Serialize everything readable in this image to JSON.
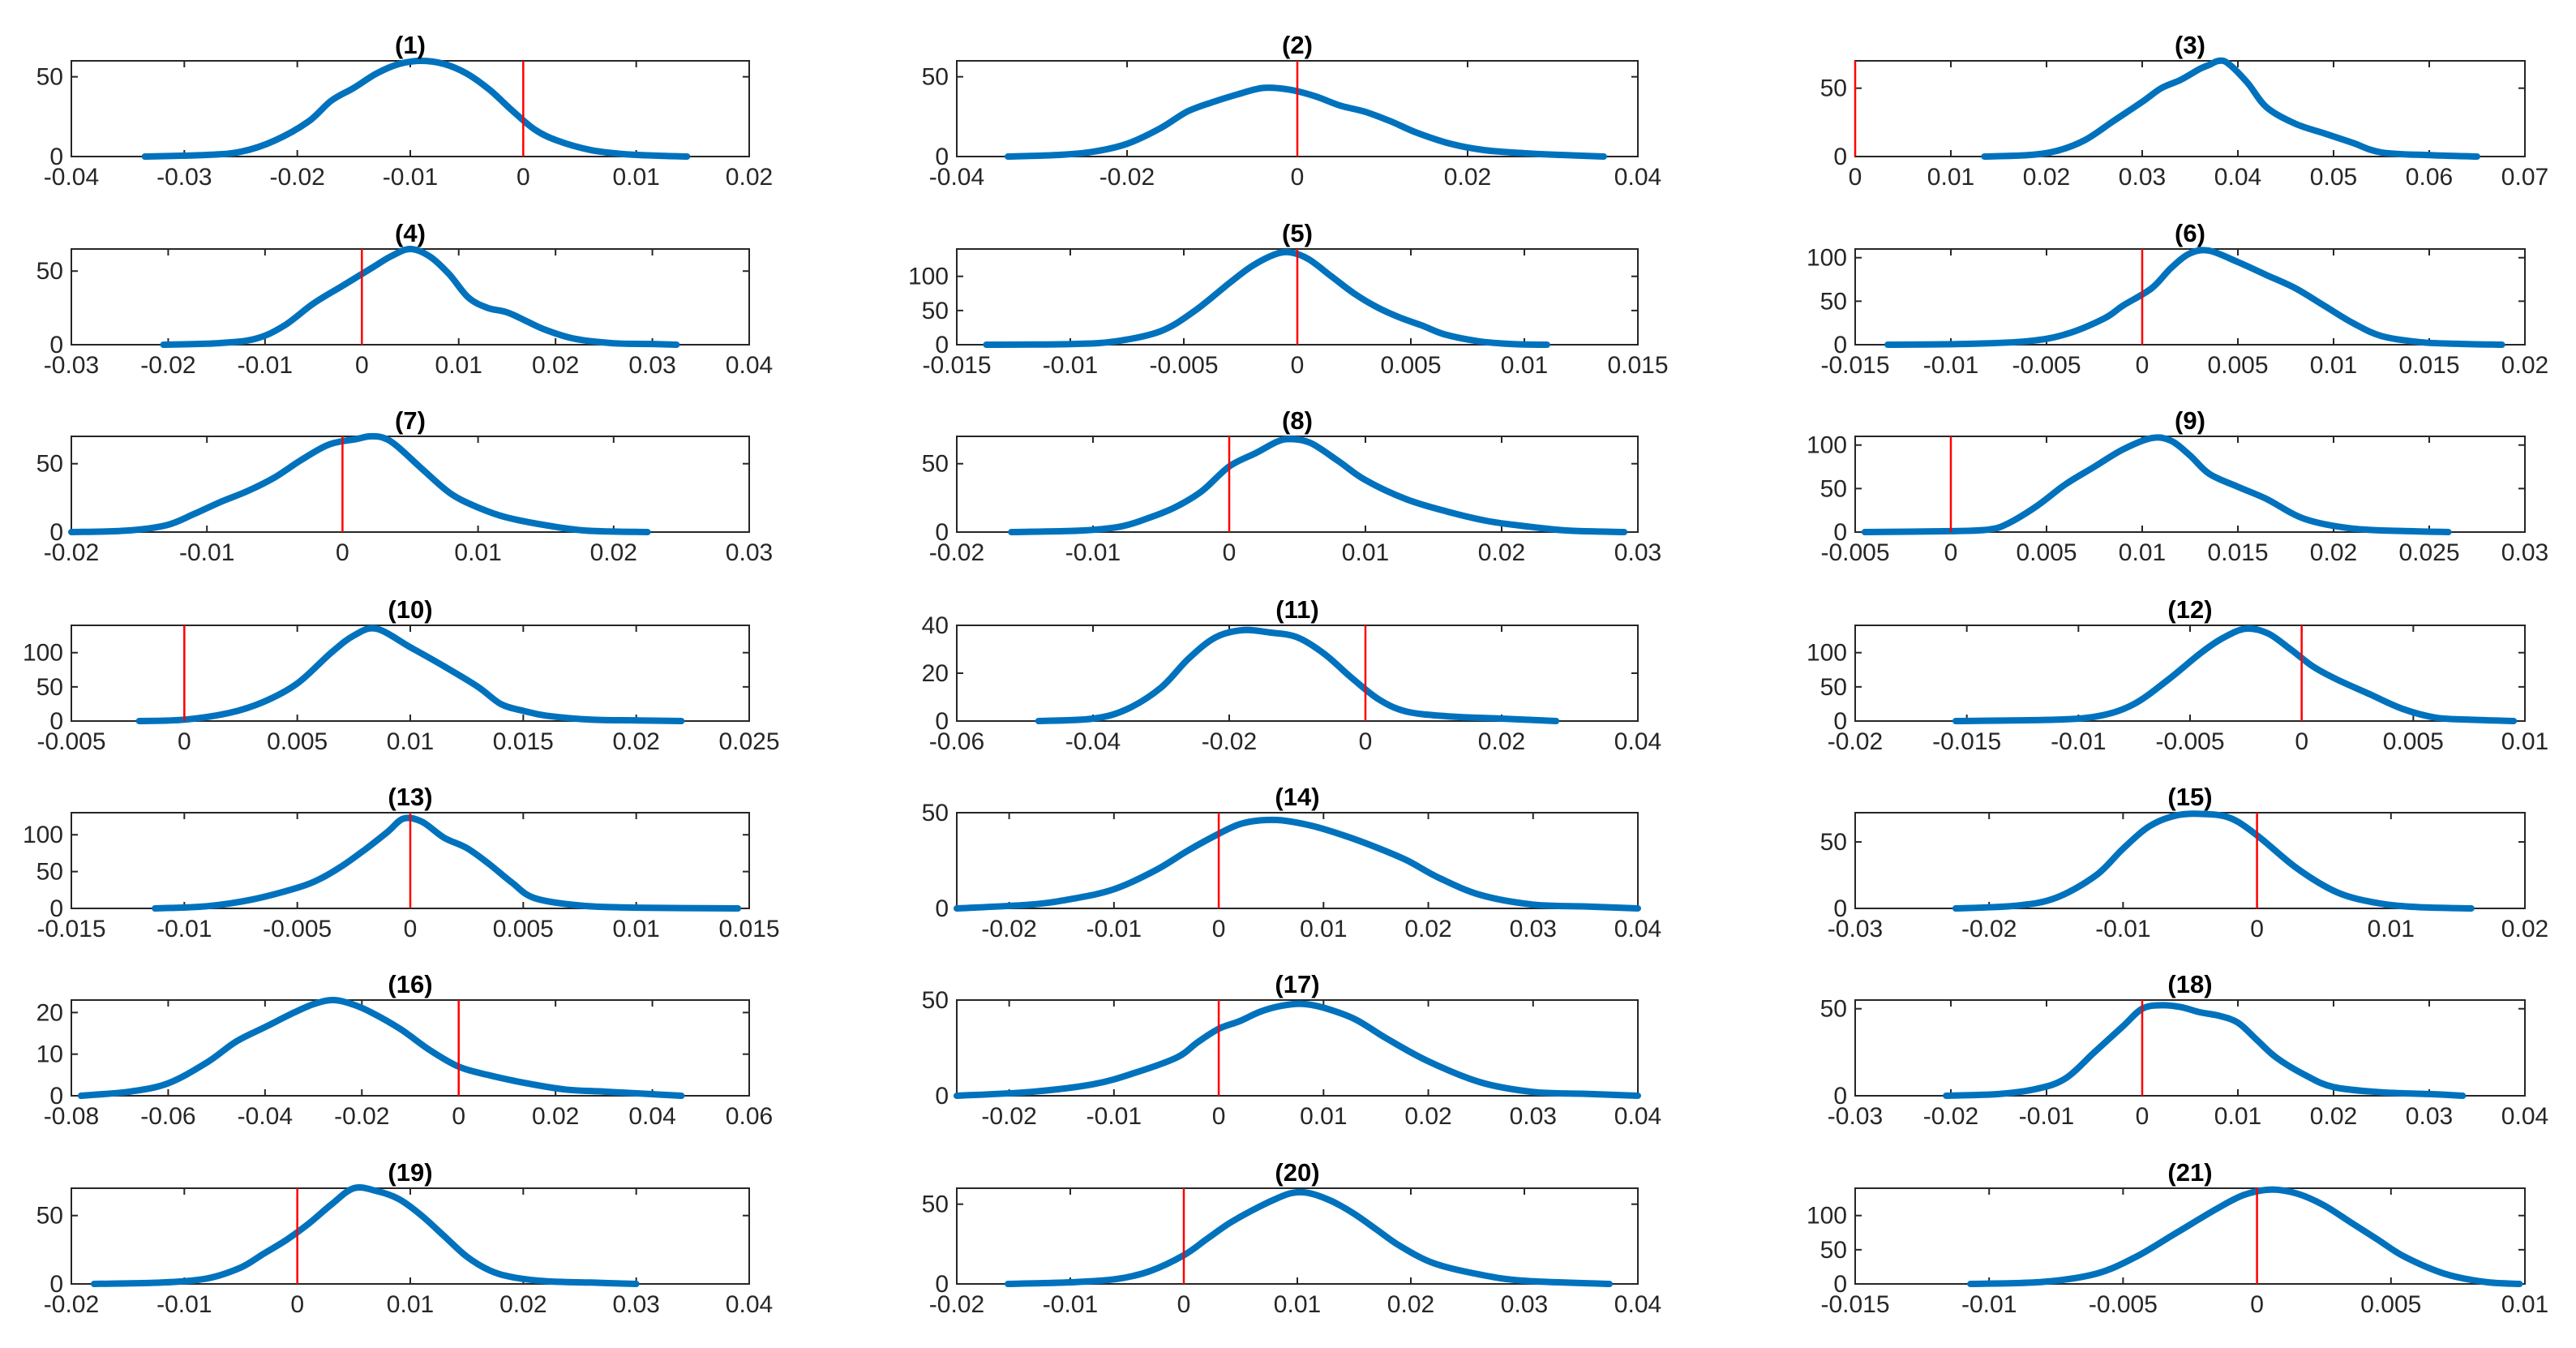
{
  "chart_data": [
    {
      "title": "(1)",
      "type": "line",
      "xticks": [
        -0.04,
        -0.03,
        -0.02,
        -0.01,
        0,
        0.01,
        0.02
      ],
      "xlim": [
        -0.04,
        0.02
      ],
      "yticks": [
        0,
        50
      ],
      "ylim": [
        0,
        60
      ],
      "ref_x": 0,
      "x": [
        -0.0335,
        -0.028,
        -0.025,
        -0.022,
        -0.019,
        -0.017,
        -0.015,
        -0.013,
        -0.011,
        -0.009,
        -0.007,
        -0.005,
        -0.003,
        -0.001,
        0.001,
        0.003,
        0.006,
        0.009,
        0.012,
        0.0145
      ],
      "y": [
        0,
        1,
        3,
        10,
        22,
        35,
        43,
        52,
        58,
        60,
        58,
        52,
        42,
        29,
        17,
        10,
        4,
        1.5,
        0.5,
        0
      ]
    },
    {
      "title": "(2)",
      "type": "line",
      "xticks": [
        -0.04,
        -0.02,
        0,
        0.02,
        0.04
      ],
      "xlim": [
        -0.04,
        0.04
      ],
      "yticks": [
        0,
        50
      ],
      "ylim": [
        0,
        60
      ],
      "ref_x": 0,
      "x": [
        -0.034,
        -0.028,
        -0.024,
        -0.02,
        -0.016,
        -0.013,
        -0.01,
        -0.007,
        -0.004,
        -0.001,
        0.002,
        0.005,
        0.008,
        0.011,
        0.014,
        0.018,
        0.022,
        0.027,
        0.031,
        0.036
      ],
      "y": [
        0,
        1,
        3,
        8,
        18,
        28,
        34,
        39,
        43,
        42,
        38,
        32,
        28,
        22,
        15,
        8,
        4,
        2,
        1,
        0
      ]
    },
    {
      "title": "(3)",
      "type": "line",
      "xticks": [
        0,
        0.01,
        0.02,
        0.03,
        0.04,
        0.05,
        0.06,
        0.07
      ],
      "xlim": [
        0,
        0.07
      ],
      "yticks": [
        0,
        50
      ],
      "ylim": [
        0,
        70
      ],
      "ref_x": 0,
      "x": [
        0.0135,
        0.018,
        0.021,
        0.024,
        0.027,
        0.03,
        0.032,
        0.034,
        0.036,
        0.037,
        0.038,
        0.039,
        0.041,
        0.043,
        0.046,
        0.049,
        0.052,
        0.055,
        0.06,
        0.065
      ],
      "y": [
        0,
        1,
        4,
        12,
        26,
        40,
        50,
        56,
        64,
        67,
        70,
        68,
        54,
        36,
        24,
        17,
        10,
        3,
        1,
        0
      ]
    },
    {
      "title": "(4)",
      "type": "line",
      "xticks": [
        -0.03,
        -0.02,
        -0.01,
        0,
        0.01,
        0.02,
        0.03,
        0.04
      ],
      "xlim": [
        -0.03,
        0.04
      ],
      "yticks": [
        0,
        50
      ],
      "ylim": [
        0,
        65
      ],
      "ref_x": 0,
      "x": [
        -0.0205,
        -0.015,
        -0.011,
        -0.008,
        -0.005,
        -0.002,
        0.001,
        0.003,
        0.005,
        0.007,
        0.009,
        0.011,
        0.013,
        0.015,
        0.017,
        0.019,
        0.022,
        0.026,
        0.03,
        0.0325
      ],
      "y": [
        0,
        1,
        4,
        13,
        28,
        40,
        52,
        60,
        65,
        60,
        48,
        32,
        25,
        22,
        16,
        10,
        4,
        1,
        0.5,
        0
      ]
    },
    {
      "title": "(5)",
      "type": "line",
      "xticks": [
        -0.015,
        -0.01,
        -0.005,
        0,
        0.005,
        0.01,
        0.015
      ],
      "xlim": [
        -0.015,
        0.015
      ],
      "yticks": [
        0,
        50,
        100
      ],
      "ylim": [
        0,
        140
      ],
      "ref_x": 0,
      "x": [
        -0.0137,
        -0.01,
        -0.008,
        -0.006,
        -0.0045,
        -0.003,
        -0.002,
        -0.001,
        -0.0003,
        0.0005,
        0.0015,
        0.0025,
        0.0035,
        0.0045,
        0.0055,
        0.0065,
        0.008,
        0.0095,
        0.011
      ],
      "y": [
        0,
        1,
        5,
        20,
        50,
        90,
        115,
        132,
        135,
        125,
        100,
        75,
        55,
        40,
        28,
        15,
        5,
        1,
        0
      ]
    },
    {
      "title": "(6)",
      "type": "line",
      "xticks": [
        -0.015,
        -0.01,
        -0.005,
        0,
        0.005,
        0.01,
        0.015,
        0.02
      ],
      "xlim": [
        -0.015,
        0.02
      ],
      "yticks": [
        0,
        50,
        100
      ],
      "ylim": [
        0,
        110
      ],
      "ref_x": 0,
      "x": [
        -0.0133,
        -0.009,
        -0.006,
        -0.004,
        -0.002,
        -0.001,
        0.0005,
        0.0015,
        0.0025,
        0.0035,
        0.005,
        0.0065,
        0.008,
        0.0095,
        0.011,
        0.0125,
        0.0145,
        0.0165,
        0.0188
      ],
      "y": [
        0,
        1,
        4,
        12,
        30,
        45,
        65,
        88,
        105,
        108,
        95,
        80,
        65,
        45,
        25,
        10,
        3,
        1,
        0
      ]
    },
    {
      "title": "(7)",
      "type": "line",
      "xticks": [
        -0.02,
        -0.01,
        0,
        0.01,
        0.02,
        0.03
      ],
      "xlim": [
        -0.02,
        0.03
      ],
      "yticks": [
        0,
        50
      ],
      "ylim": [
        0,
        70
      ],
      "ref_x": 0,
      "x": [
        -0.02,
        -0.016,
        -0.013,
        -0.011,
        -0.009,
        -0.007,
        -0.005,
        -0.003,
        -0.001,
        0.001,
        0.002,
        0.003,
        0.004,
        0.006,
        0.008,
        0.01,
        0.012,
        0.015,
        0.018,
        0.0225
      ],
      "y": [
        0,
        1,
        5,
        13,
        22,
        30,
        40,
        53,
        64,
        68,
        70,
        69,
        63,
        45,
        28,
        18,
        11,
        5,
        1,
        0
      ]
    },
    {
      "title": "(8)",
      "type": "line",
      "xticks": [
        -0.02,
        -0.01,
        0,
        0.01,
        0.02,
        0.03
      ],
      "xlim": [
        -0.02,
        0.03
      ],
      "yticks": [
        0,
        50
      ],
      "ylim": [
        0,
        70
      ],
      "ref_x": 0,
      "x": [
        -0.016,
        -0.011,
        -0.008,
        -0.006,
        -0.004,
        -0.002,
        0,
        0.002,
        0.0035,
        0.0045,
        0.006,
        0.008,
        0.01,
        0.013,
        0.016,
        0.019,
        0.022,
        0.025,
        0.029
      ],
      "y": [
        0,
        1,
        4,
        10,
        18,
        30,
        48,
        58,
        66,
        68,
        65,
        52,
        38,
        24,
        15,
        8,
        4,
        1,
        0
      ]
    },
    {
      "title": "(9)",
      "type": "line",
      "xticks": [
        -0.005,
        0,
        0.005,
        0.01,
        0.015,
        0.02,
        0.025,
        0.03
      ],
      "xlim": [
        -0.005,
        0.03
      ],
      "yticks": [
        0,
        50,
        100
      ],
      "ylim": [
        0,
        110
      ],
      "ref_x": 0,
      "x": [
        -0.0045,
        0,
        0.002,
        0.003,
        0.0045,
        0.006,
        0.0075,
        0.009,
        0.0105,
        0.0115,
        0.0125,
        0.0135,
        0.015,
        0.0165,
        0.0185,
        0.021,
        0.024,
        0.026
      ],
      "y": [
        0,
        1,
        3,
        10,
        30,
        55,
        75,
        95,
        108,
        105,
        88,
        67,
        52,
        38,
        15,
        4,
        1,
        0
      ]
    },
    {
      "title": "(10)",
      "type": "line",
      "xticks": [
        -0.005,
        0,
        0.005,
        0.01,
        0.015,
        0.02,
        0.025
      ],
      "xlim": [
        -0.005,
        0.025
      ],
      "yticks": [
        0,
        50,
        100
      ],
      "ylim": [
        0,
        140
      ],
      "ref_x": 0,
      "x": [
        -0.002,
        0,
        0.002,
        0.0035,
        0.005,
        0.0065,
        0.0075,
        0.0085,
        0.01,
        0.0115,
        0.013,
        0.014,
        0.015,
        0.016,
        0.018,
        0.02,
        0.022
      ],
      "y": [
        0,
        2,
        12,
        28,
        55,
        100,
        125,
        135,
        108,
        80,
        50,
        25,
        15,
        8,
        2,
        1,
        0
      ]
    },
    {
      "title": "(11)",
      "type": "line",
      "xticks": [
        -0.06,
        -0.04,
        -0.02,
        0,
        0.02,
        0.04
      ],
      "xlim": [
        -0.06,
        0.04
      ],
      "yticks": [
        0,
        20,
        40
      ],
      "ylim": [
        0,
        40
      ],
      "ref_x": 0,
      "x": [
        -0.048,
        -0.04,
        -0.035,
        -0.03,
        -0.026,
        -0.022,
        -0.018,
        -0.014,
        -0.01,
        -0.006,
        -0.002,
        0.002,
        0.006,
        0.012,
        0.02,
        0.028
      ],
      "y": [
        0,
        1,
        5,
        14,
        26,
        35,
        38,
        37,
        35,
        28,
        18,
        9,
        4,
        2,
        1,
        0
      ]
    },
    {
      "title": "(12)",
      "type": "line",
      "xticks": [
        -0.02,
        -0.015,
        -0.01,
        -0.005,
        0,
        0.005,
        0.01
      ],
      "xlim": [
        -0.02,
        0.01
      ],
      "yticks": [
        0,
        50,
        100
      ],
      "ylim": [
        0,
        140
      ],
      "ref_x": 0,
      "x": [
        -0.0155,
        -0.011,
        -0.009,
        -0.0075,
        -0.006,
        -0.0045,
        -0.0035,
        -0.0025,
        -0.0015,
        -0.0005,
        0.0005,
        0.0015,
        0.003,
        0.0045,
        0.006,
        0.0075,
        0.0095
      ],
      "y": [
        0,
        2,
        8,
        25,
        60,
        100,
        122,
        135,
        128,
        105,
        80,
        62,
        40,
        18,
        5,
        2,
        0
      ]
    },
    {
      "title": "(13)",
      "type": "line",
      "xticks": [
        -0.015,
        -0.01,
        -0.005,
        0,
        0.005,
        0.01,
        0.015
      ],
      "xlim": [
        -0.015,
        0.015
      ],
      "yticks": [
        0,
        50,
        100
      ],
      "ylim": [
        0,
        130
      ],
      "ref_x": 0,
      "x": [
        -0.0113,
        -0.009,
        -0.007,
        -0.005,
        -0.004,
        -0.003,
        -0.002,
        -0.001,
        -0.0003,
        0.0005,
        0.0015,
        0.0025,
        0.0035,
        0.0045,
        0.0055,
        0.0075,
        0.01,
        0.0145
      ],
      "y": [
        0,
        3,
        12,
        28,
        40,
        58,
        80,
        104,
        122,
        118,
        96,
        82,
        60,
        35,
        14,
        4,
        1,
        0
      ]
    },
    {
      "title": "(14)",
      "type": "line",
      "xticks": [
        -0.02,
        -0.01,
        0,
        0.01,
        0.02,
        0.03,
        0.04
      ],
      "xlim": [
        -0.025,
        0.04
      ],
      "yticks": [
        0,
        50
      ],
      "ylim": [
        0,
        50
      ],
      "ref_x": 0,
      "x": [
        -0.025,
        -0.018,
        -0.014,
        -0.01,
        -0.006,
        -0.003,
        0,
        0.002,
        0.004,
        0.006,
        0.009,
        0.012,
        0.015,
        0.018,
        0.021,
        0.025,
        0.03,
        0.035,
        0.04
      ],
      "y": [
        0,
        2,
        5,
        10,
        20,
        30,
        39,
        44,
        46,
        46,
        43,
        38,
        32,
        25,
        16,
        7,
        2,
        1,
        0
      ]
    },
    {
      "title": "(15)",
      "type": "line",
      "xticks": [
        -0.03,
        -0.02,
        -0.01,
        0,
        0.01,
        0.02
      ],
      "xlim": [
        -0.03,
        0.02
      ],
      "yticks": [
        0,
        50
      ],
      "ylim": [
        0,
        72
      ],
      "ref_x": 0,
      "x": [
        -0.0225,
        -0.018,
        -0.015,
        -0.012,
        -0.01,
        -0.008,
        -0.006,
        -0.004,
        -0.002,
        0,
        0.003,
        0.006,
        0.009,
        0.012,
        0.016
      ],
      "y": [
        0,
        2,
        8,
        25,
        45,
        62,
        70,
        71,
        68,
        55,
        30,
        12,
        4,
        1,
        0
      ]
    },
    {
      "title": "(16)",
      "type": "line",
      "xticks": [
        -0.08,
        -0.06,
        -0.04,
        -0.02,
        0,
        0.02,
        0.04,
        0.06
      ],
      "xlim": [
        -0.08,
        0.06
      ],
      "yticks": [
        0,
        10,
        20
      ],
      "ylim": [
        0,
        23
      ],
      "ref_x": 0,
      "x": [
        -0.078,
        -0.068,
        -0.06,
        -0.052,
        -0.046,
        -0.04,
        -0.034,
        -0.03,
        -0.026,
        -0.022,
        -0.018,
        -0.012,
        -0.006,
        0,
        0.006,
        0.014,
        0.022,
        0.03,
        0.038,
        0.046
      ],
      "y": [
        0,
        1,
        3,
        8,
        13,
        16.5,
        20,
        22,
        23,
        22,
        20,
        16,
        11,
        7,
        5,
        3,
        1.5,
        1,
        0.5,
        0
      ]
    },
    {
      "title": "(17)",
      "type": "line",
      "xticks": [
        -0.02,
        -0.01,
        0,
        0.01,
        0.02,
        0.03,
        0.04
      ],
      "xlim": [
        -0.025,
        0.04
      ],
      "yticks": [
        0,
        50
      ],
      "ylim": [
        0,
        50
      ],
      "ref_x": 0,
      "x": [
        -0.025,
        -0.018,
        -0.012,
        -0.008,
        -0.004,
        -0.002,
        0,
        0.002,
        0.004,
        0.006,
        0.008,
        0.01,
        0.013,
        0.016,
        0.02,
        0.025,
        0.03,
        0.035,
        0.04
      ],
      "y": [
        0,
        2,
        6,
        12,
        20,
        28,
        35,
        39,
        44,
        47,
        48,
        46,
        40,
        30,
        18,
        7,
        2,
        1,
        0
      ]
    },
    {
      "title": "(18)",
      "type": "line",
      "xticks": [
        -0.03,
        -0.02,
        -0.01,
        0,
        0.01,
        0.02,
        0.03,
        0.04
      ],
      "xlim": [
        -0.03,
        0.04
      ],
      "yticks": [
        0,
        50
      ],
      "ylim": [
        0,
        55
      ],
      "ref_x": 0,
      "x": [
        -0.0205,
        -0.015,
        -0.011,
        -0.008,
        -0.005,
        -0.002,
        0,
        0.002,
        0.004,
        0.006,
        0.008,
        0.01,
        0.012,
        0.014,
        0.017,
        0.02,
        0.025,
        0.03,
        0.0335
      ],
      "y": [
        0,
        1,
        4,
        10,
        25,
        40,
        50,
        52,
        51,
        48,
        46,
        42,
        32,
        22,
        12,
        5,
        2,
        1,
        0
      ]
    },
    {
      "title": "(19)",
      "type": "line",
      "xticks": [
        -0.02,
        -0.01,
        0,
        0.01,
        0.02,
        0.03,
        0.04
      ],
      "xlim": [
        -0.02,
        0.04
      ],
      "yticks": [
        0,
        50
      ],
      "ylim": [
        0,
        70
      ],
      "ref_x": 0,
      "x": [
        -0.018,
        -0.012,
        -0.008,
        -0.005,
        -0.003,
        -0.001,
        0.001,
        0.003,
        0.005,
        0.007,
        0.009,
        0.011,
        0.013,
        0.015,
        0.017,
        0.019,
        0.022,
        0.026,
        0.03
      ],
      "y": [
        0,
        1,
        4,
        12,
        22,
        32,
        44,
        58,
        70,
        68,
        62,
        50,
        35,
        20,
        10,
        5,
        2,
        1,
        0
      ]
    },
    {
      "title": "(20)",
      "type": "line",
      "xticks": [
        -0.02,
        -0.01,
        0,
        0.01,
        0.02,
        0.03,
        0.04
      ],
      "xlim": [
        -0.02,
        0.04
      ],
      "yticks": [
        0,
        50
      ],
      "ylim": [
        0,
        60
      ],
      "ref_x": 0,
      "x": [
        -0.0155,
        -0.01,
        -0.006,
        -0.003,
        0,
        0.002,
        0.004,
        0.006,
        0.008,
        0.0095,
        0.011,
        0.013,
        0.015,
        0.017,
        0.019,
        0.022,
        0.026,
        0.03,
        0.0375
      ],
      "y": [
        0,
        1,
        3,
        8,
        18,
        28,
        38,
        46,
        53,
        57,
        57,
        52,
        44,
        34,
        24,
        13,
        6,
        2,
        0
      ]
    },
    {
      "title": "(21)",
      "type": "line",
      "xticks": [
        -0.015,
        -0.01,
        -0.005,
        0,
        0.005,
        0.01
      ],
      "xlim": [
        -0.015,
        0.01
      ],
      "yticks": [
        0,
        50,
        100
      ],
      "ylim": [
        0,
        140
      ],
      "ref_x": 0,
      "x": [
        -0.0107,
        -0.008,
        -0.006,
        -0.0045,
        -0.003,
        -0.0015,
        -0.0005,
        0.0005,
        0.0015,
        0.0025,
        0.0035,
        0.0045,
        0.0055,
        0.007,
        0.0085,
        0.0098
      ],
      "y": [
        0,
        3,
        15,
        40,
        75,
        110,
        130,
        138,
        132,
        115,
        90,
        65,
        40,
        15,
        3,
        0
      ]
    }
  ],
  "colors": {
    "line": "#0072bd",
    "ref": "#ff0000",
    "axis": "#262626"
  }
}
